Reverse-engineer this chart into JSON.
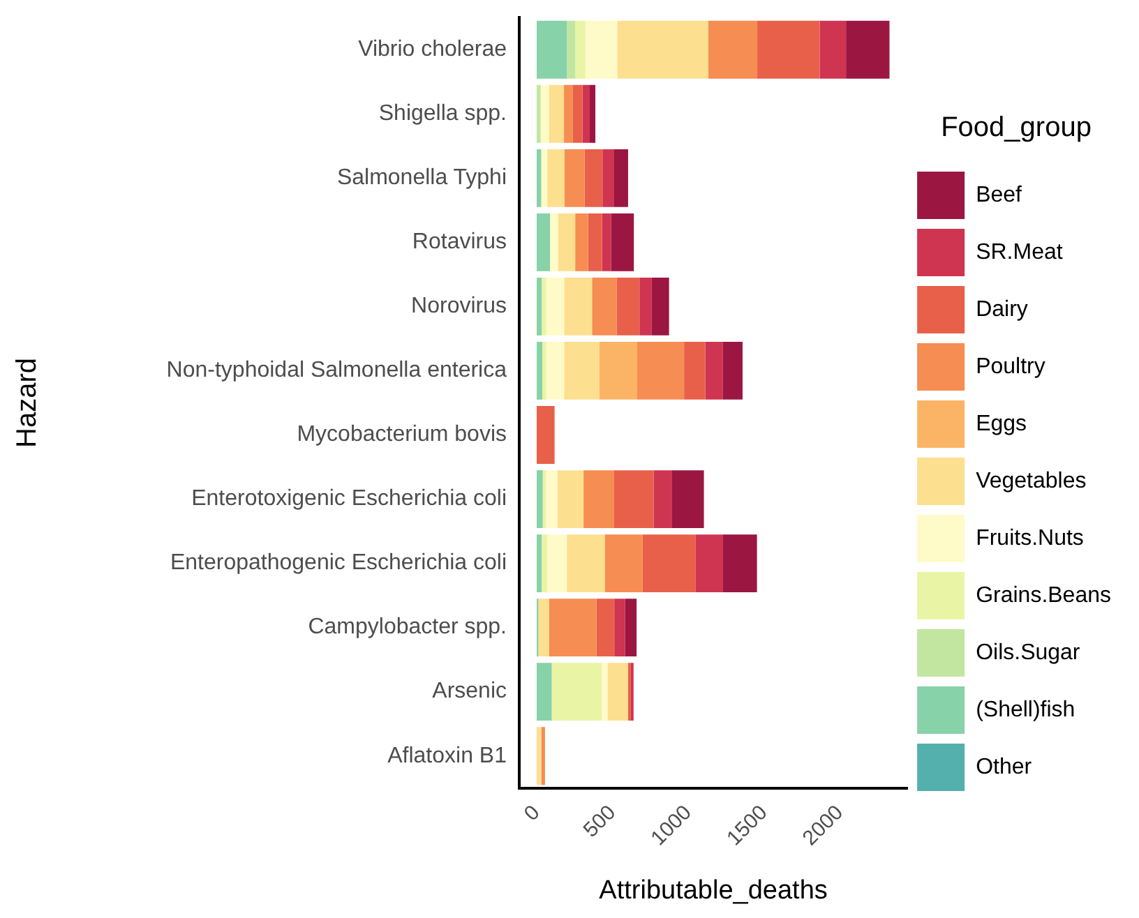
{
  "chart_data": {
    "type": "bar",
    "orientation": "horizontal",
    "stacked": true,
    "xlabel": "Attributable_deaths",
    "ylabel": "Hazard",
    "legend_title": "Food_group",
    "legend": "right",
    "grid": false,
    "categories": [
      "Vibrio cholerae",
      "Shigella spp.",
      "Salmonella Typhi",
      "Rotavirus",
      "Norovirus",
      "Non-typhoidal Salmonella enterica",
      "Mycobacterium bovis",
      "Enterotoxigenic Escherichia coli",
      "Enteropathogenic Escherichia coli",
      "Campylobacter spp.",
      "Arsenic",
      "Aflatoxin B1"
    ],
    "xlim": [
      -115,
      2445
    ],
    "xticks": [
      0,
      500,
      1000,
      1500,
      2000
    ],
    "series": [
      {
        "name": "Other",
        "color": "#53b0ad",
        "values": [
          null,
          null,
          null,
          null,
          null,
          null,
          null,
          null,
          null,
          null,
          null,
          null
        ]
      },
      {
        "name": "(Shell)fish",
        "color": "#87d2a8",
        "values": [
          200,
          null,
          30,
          88,
          33,
          37,
          null,
          40,
          33,
          11,
          99,
          null
        ]
      },
      {
        "name": "Oils.Sugar",
        "color": "#c2e6a0",
        "values": [
          55,
          26,
          null,
          null,
          null,
          null,
          null,
          null,
          null,
          null,
          null,
          null
        ]
      },
      {
        "name": "Grains.Beans",
        "color": "#e9f5a5",
        "values": [
          66,
          null,
          null,
          null,
          30,
          26,
          null,
          22,
          37,
          null,
          331,
          null
        ]
      },
      {
        "name": "Fruits.Nuts",
        "color": "#fffbc8",
        "values": [
          210,
          55,
          40,
          52,
          118,
          118,
          null,
          74,
          129,
          null,
          37,
          null
        ]
      },
      {
        "name": "Vegetables",
        "color": "#fddf90",
        "values": [
          600,
          99,
          114,
          114,
          184,
          232,
          null,
          173,
          250,
          70,
          136,
          30
        ]
      },
      {
        "name": "Eggs",
        "color": "#fbb466",
        "values": [
          null,
          null,
          null,
          null,
          null,
          250,
          null,
          null,
          null,
          null,
          null,
          null
        ]
      },
      {
        "name": "Poultry",
        "color": "#f68d52",
        "values": [
          324,
          59,
          132,
          85,
          162,
          309,
          null,
          202,
          250,
          313,
          null,
          25
        ]
      },
      {
        "name": "Dairy",
        "color": "#e8604a",
        "values": [
          412,
          63,
          118,
          92,
          151,
          140,
          118,
          261,
          350,
          118,
          18,
          null
        ]
      },
      {
        "name": "SR.Meat",
        "color": "#cf3451",
        "values": [
          173,
          48,
          77,
          59,
          81,
          114,
          null,
          121,
          180,
          70,
          18,
          null
        ]
      },
      {
        "name": "Beef",
        "color": "#9c1642",
        "values": [
          287,
          37,
          92,
          151,
          114,
          132,
          null,
          210,
          224,
          77,
          null,
          null
        ]
      }
    ]
  }
}
